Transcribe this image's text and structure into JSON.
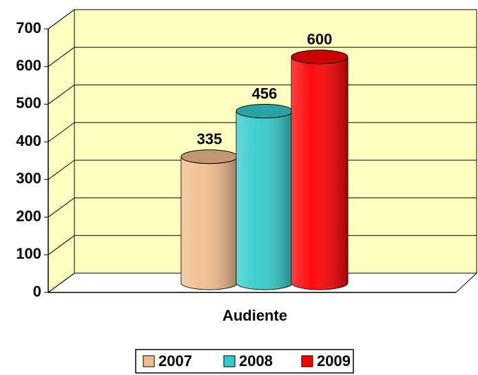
{
  "chart_data": {
    "type": "bar",
    "categories": [
      "Audiente"
    ],
    "series": [
      {
        "name": "2007",
        "color": "#f2bd8c",
        "values": [
          335
        ]
      },
      {
        "name": "2008",
        "color": "#33cccc",
        "values": [
          456
        ]
      },
      {
        "name": "2009",
        "color": "#ff0000",
        "values": [
          600
        ]
      }
    ],
    "ylim": [
      0,
      700
    ],
    "yticks": [
      0,
      100,
      200,
      300,
      400,
      500,
      600,
      700
    ],
    "grid": true,
    "legend": "bottom"
  }
}
